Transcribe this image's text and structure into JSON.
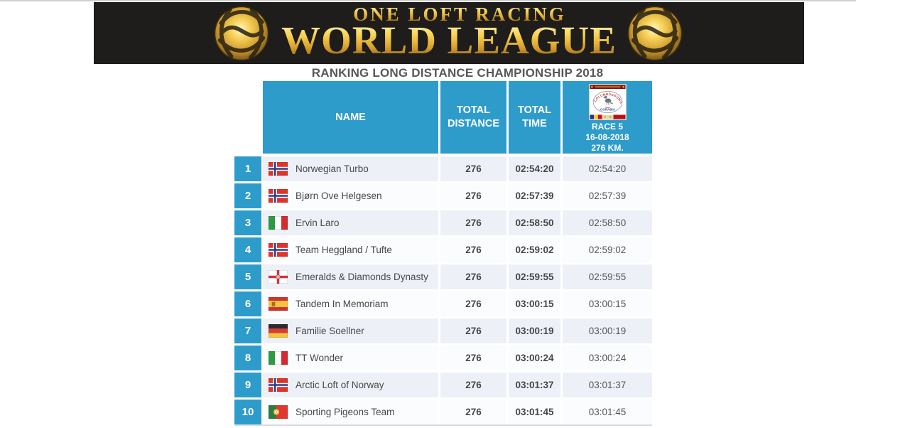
{
  "banner": {
    "top_text": "ONE LOFT RACING",
    "main_text": "WORLD LEAGUE"
  },
  "page_title": "RANKING LONG DISTANCE CHAMPIONSHIP 2018",
  "table_header": {
    "name": "NAME",
    "total_distance": "TOTAL DISTANCE",
    "total_time": "TOTAL TIME",
    "race": {
      "title": "RACE 5",
      "date": "16-08-2018",
      "distance": "276 KM.",
      "badge": {
        "arc_text": "COLUMBODROMUL",
        "bottom_text": "CORABIA"
      }
    }
  },
  "rows": [
    {
      "rank": "1",
      "flag": "no",
      "name": "Norwegian Turbo",
      "total_distance": "276",
      "total_time": "02:54:20",
      "race_time": "02:54:20"
    },
    {
      "rank": "2",
      "flag": "no",
      "name": "Bjørn Ove Helgesen",
      "total_distance": "276",
      "total_time": "02:57:39",
      "race_time": "02:57:39"
    },
    {
      "rank": "3",
      "flag": "it",
      "name": "Ervin Laro",
      "total_distance": "276",
      "total_time": "02:58:50",
      "race_time": "02:58:50"
    },
    {
      "rank": "4",
      "flag": "no",
      "name": "Team Heggland / Tufte",
      "total_distance": "276",
      "total_time": "02:59:02",
      "race_time": "02:59:02"
    },
    {
      "rank": "5",
      "flag": "nir",
      "name": "Emeralds & Diamonds Dynasty",
      "total_distance": "276",
      "total_time": "02:59:55",
      "race_time": "02:59:55"
    },
    {
      "rank": "6",
      "flag": "es",
      "name": "Tandem In Memoriam",
      "total_distance": "276",
      "total_time": "03:00:15",
      "race_time": "03:00:15"
    },
    {
      "rank": "7",
      "flag": "de",
      "name": "Familie Soellner",
      "total_distance": "276",
      "total_time": "03:00:19",
      "race_time": "03:00:19"
    },
    {
      "rank": "8",
      "flag": "it",
      "name": "TT Wonder",
      "total_distance": "276",
      "total_time": "03:00:24",
      "race_time": "03:00:24"
    },
    {
      "rank": "9",
      "flag": "no",
      "name": "Arctic Loft of Norway",
      "total_distance": "276",
      "total_time": "03:01:37",
      "race_time": "03:01:37"
    },
    {
      "rank": "10",
      "flag": "pt",
      "name": "Sporting Pigeons Team",
      "total_distance": "276",
      "total_time": "03:01:45",
      "race_time": "03:01:45"
    }
  ],
  "colors": {
    "header_blue": "#2e9ccb",
    "banner_black": "#1e1d1b",
    "row_odd": "#edf1f7",
    "row_even": "#fbfcfd",
    "title_gray": "#57585a",
    "gold": "#e9bc41"
  }
}
